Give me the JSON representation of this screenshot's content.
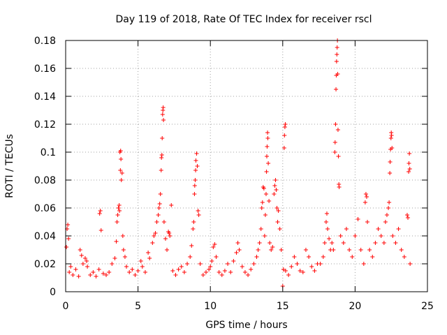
{
  "chart_data": {
    "type": "scatter",
    "title": "Day 119 of 2018, Rate Of TEC Index for receiver rscl",
    "xlabel": "GPS time / hours",
    "ylabel": "ROTI / TECUs",
    "xlim": [
      0,
      25
    ],
    "ylim": [
      0,
      0.18
    ],
    "xticks": [
      0,
      5,
      10,
      15,
      20,
      25
    ],
    "xtick_labels": [
      "0",
      "5",
      "10",
      "15",
      "20",
      "25"
    ],
    "yticks": [
      0,
      0.02,
      0.04,
      0.06,
      0.08,
      0.1,
      0.12,
      0.14,
      0.16,
      0.18
    ],
    "ytick_labels": [
      "0",
      "0.02",
      "0.04",
      "0.06",
      "0.08",
      "0.1",
      "0.12",
      "0.14",
      "0.16",
      "0.18"
    ],
    "grid": true,
    "marker": "+",
    "color": "#ff0000",
    "series": [
      {
        "name": "ROTI",
        "points": [
          [
            0.05,
            0.032
          ],
          [
            0.1,
            0.045
          ],
          [
            0.15,
            0.048
          ],
          [
            0.2,
            0.038
          ],
          [
            0.25,
            0.014
          ],
          [
            0.35,
            0.018
          ],
          [
            0.5,
            0.012
          ],
          [
            0.7,
            0.016
          ],
          [
            0.9,
            0.011
          ],
          [
            1.0,
            0.03
          ],
          [
            1.1,
            0.026
          ],
          [
            1.2,
            0.02
          ],
          [
            1.35,
            0.024
          ],
          [
            1.45,
            0.022
          ],
          [
            1.5,
            0.018
          ],
          [
            1.7,
            0.012
          ],
          [
            1.9,
            0.014
          ],
          [
            2.1,
            0.011
          ],
          [
            2.3,
            0.016
          ],
          [
            2.35,
            0.056
          ],
          [
            2.4,
            0.058
          ],
          [
            2.45,
            0.044
          ],
          [
            2.6,
            0.013
          ],
          [
            2.8,
            0.012
          ],
          [
            3.0,
            0.014
          ],
          [
            3.2,
            0.02
          ],
          [
            3.4,
            0.024
          ],
          [
            3.5,
            0.036
          ],
          [
            3.55,
            0.05
          ],
          [
            3.6,
            0.055
          ],
          [
            3.65,
            0.06
          ],
          [
            3.7,
            0.062
          ],
          [
            3.72,
            0.058
          ],
          [
            3.75,
            0.1
          ],
          [
            3.78,
            0.087
          ],
          [
            3.8,
            0.101
          ],
          [
            3.82,
            0.095
          ],
          [
            3.85,
            0.08
          ],
          [
            3.9,
            0.085
          ],
          [
            3.95,
            0.04
          ],
          [
            4.0,
            0.03
          ],
          [
            4.1,
            0.025
          ],
          [
            4.2,
            0.018
          ],
          [
            4.4,
            0.014
          ],
          [
            4.6,
            0.016
          ],
          [
            4.8,
            0.012
          ],
          [
            5.0,
            0.015
          ],
          [
            5.2,
            0.022
          ],
          [
            5.3,
            0.018
          ],
          [
            5.5,
            0.014
          ],
          [
            5.7,
            0.028
          ],
          [
            5.8,
            0.024
          ],
          [
            6.0,
            0.035
          ],
          [
            6.1,
            0.04
          ],
          [
            6.2,
            0.042
          ],
          [
            6.3,
            0.05
          ],
          [
            6.4,
            0.055
          ],
          [
            6.45,
            0.06
          ],
          [
            6.5,
            0.063
          ],
          [
            6.55,
            0.07
          ],
          [
            6.6,
            0.087
          ],
          [
            6.62,
            0.096
          ],
          [
            6.65,
            0.098
          ],
          [
            6.67,
            0.11
          ],
          [
            6.7,
            0.127
          ],
          [
            6.72,
            0.13
          ],
          [
            6.74,
            0.132
          ],
          [
            6.76,
            0.123
          ],
          [
            6.8,
            0.05
          ],
          [
            6.9,
            0.038
          ],
          [
            7.0,
            0.03
          ],
          [
            7.1,
            0.043
          ],
          [
            7.15,
            0.042
          ],
          [
            7.2,
            0.04
          ],
          [
            7.3,
            0.062
          ],
          [
            7.4,
            0.015
          ],
          [
            7.6,
            0.012
          ],
          [
            7.8,
            0.016
          ],
          [
            8.0,
            0.018
          ],
          [
            8.2,
            0.014
          ],
          [
            8.4,
            0.02
          ],
          [
            8.6,
            0.025
          ],
          [
            8.7,
            0.033
          ],
          [
            8.8,
            0.045
          ],
          [
            8.85,
            0.05
          ],
          [
            8.9,
            0.07
          ],
          [
            8.92,
            0.076
          ],
          [
            8.95,
            0.08
          ],
          [
            8.98,
            0.087
          ],
          [
            9.0,
            0.094
          ],
          [
            9.05,
            0.099
          ],
          [
            9.1,
            0.09
          ],
          [
            9.15,
            0.058
          ],
          [
            9.2,
            0.055
          ],
          [
            9.3,
            0.02
          ],
          [
            9.5,
            0.012
          ],
          [
            9.7,
            0.014
          ],
          [
            9.9,
            0.016
          ],
          [
            10.0,
            0.018
          ],
          [
            10.1,
            0.022
          ],
          [
            10.2,
            0.032
          ],
          [
            10.3,
            0.034
          ],
          [
            10.4,
            0.025
          ],
          [
            10.6,
            0.014
          ],
          [
            10.8,
            0.012
          ],
          [
            11.0,
            0.015
          ],
          [
            11.2,
            0.02
          ],
          [
            11.4,
            0.014
          ],
          [
            11.6,
            0.022
          ],
          [
            11.8,
            0.028
          ],
          [
            11.9,
            0.035
          ],
          [
            12.0,
            0.03
          ],
          [
            12.2,
            0.018
          ],
          [
            12.4,
            0.014
          ],
          [
            12.6,
            0.012
          ],
          [
            12.8,
            0.016
          ],
          [
            13.0,
            0.02
          ],
          [
            13.2,
            0.025
          ],
          [
            13.3,
            0.03
          ],
          [
            13.4,
            0.035
          ],
          [
            13.5,
            0.045
          ],
          [
            13.55,
            0.06
          ],
          [
            13.6,
            0.064
          ],
          [
            13.65,
            0.075
          ],
          [
            13.7,
            0.074
          ],
          [
            13.75,
            0.04
          ],
          [
            13.8,
            0.055
          ],
          [
            13.85,
            0.07
          ],
          [
            13.88,
            0.086
          ],
          [
            13.9,
            0.097
          ],
          [
            13.92,
            0.104
          ],
          [
            13.95,
            0.114
          ],
          [
            13.97,
            0.11
          ],
          [
            14.0,
            0.092
          ],
          [
            14.05,
            0.065
          ],
          [
            14.1,
            0.035
          ],
          [
            14.2,
            0.03
          ],
          [
            14.3,
            0.032
          ],
          [
            14.4,
            0.07
          ],
          [
            14.45,
            0.076
          ],
          [
            14.5,
            0.08
          ],
          [
            14.55,
            0.073
          ],
          [
            14.6,
            0.06
          ],
          [
            14.65,
            0.05
          ],
          [
            14.7,
            0.058
          ],
          [
            14.8,
            0.045
          ],
          [
            14.9,
            0.03
          ],
          [
            15.0,
            0.004
          ],
          [
            15.05,
            0.016
          ],
          [
            15.1,
            0.103
          ],
          [
            15.12,
            0.112
          ],
          [
            15.15,
            0.118
          ],
          [
            15.18,
            0.12
          ],
          [
            15.2,
            0.015
          ],
          [
            15.4,
            0.012
          ],
          [
            15.6,
            0.018
          ],
          [
            15.8,
            0.025
          ],
          [
            16.0,
            0.02
          ],
          [
            16.2,
            0.015
          ],
          [
            16.4,
            0.014
          ],
          [
            16.6,
            0.03
          ],
          [
            16.8,
            0.025
          ],
          [
            17.0,
            0.018
          ],
          [
            17.2,
            0.015
          ],
          [
            17.4,
            0.02
          ],
          [
            17.6,
            0.02
          ],
          [
            17.8,
            0.025
          ],
          [
            17.9,
            0.035
          ],
          [
            18.0,
            0.05
          ],
          [
            18.05,
            0.056
          ],
          [
            18.1,
            0.045
          ],
          [
            18.2,
            0.038
          ],
          [
            18.3,
            0.03
          ],
          [
            18.4,
            0.035
          ],
          [
            18.5,
            0.03
          ],
          [
            18.6,
            0.1
          ],
          [
            18.62,
            0.107
          ],
          [
            18.65,
            0.12
          ],
          [
            18.68,
            0.145
          ],
          [
            18.7,
            0.155
          ],
          [
            18.72,
            0.165
          ],
          [
            18.74,
            0.17
          ],
          [
            18.76,
            0.175
          ],
          [
            18.78,
            0.18
          ],
          [
            18.8,
            0.156
          ],
          [
            18.82,
            0.116
          ],
          [
            18.85,
            0.097
          ],
          [
            18.88,
            0.077
          ],
          [
            18.9,
            0.075
          ],
          [
            19.0,
            0.04
          ],
          [
            19.2,
            0.035
          ],
          [
            19.4,
            0.045
          ],
          [
            19.6,
            0.03
          ],
          [
            19.8,
            0.025
          ],
          [
            20.0,
            0.04
          ],
          [
            20.2,
            0.052
          ],
          [
            20.4,
            0.03
          ],
          [
            20.6,
            0.02
          ],
          [
            20.7,
            0.064
          ],
          [
            20.75,
            0.07
          ],
          [
            20.8,
            0.068
          ],
          [
            20.85,
            0.05
          ],
          [
            21.0,
            0.03
          ],
          [
            21.2,
            0.025
          ],
          [
            21.4,
            0.035
          ],
          [
            21.6,
            0.045
          ],
          [
            21.8,
            0.04
          ],
          [
            22.0,
            0.035
          ],
          [
            22.1,
            0.05
          ],
          [
            22.2,
            0.055
          ],
          [
            22.3,
            0.06
          ],
          [
            22.35,
            0.064
          ],
          [
            22.4,
            0.085
          ],
          [
            22.42,
            0.093
          ],
          [
            22.45,
            0.102
          ],
          [
            22.48,
            0.11
          ],
          [
            22.5,
            0.114
          ],
          [
            22.52,
            0.112
          ],
          [
            22.55,
            0.103
          ],
          [
            22.6,
            0.04
          ],
          [
            22.8,
            0.035
          ],
          [
            23.0,
            0.045
          ],
          [
            23.2,
            0.03
          ],
          [
            23.4,
            0.025
          ],
          [
            23.6,
            0.055
          ],
          [
            23.65,
            0.053
          ],
          [
            23.7,
            0.086
          ],
          [
            23.72,
            0.092
          ],
          [
            23.75,
            0.099
          ],
          [
            23.78,
            0.088
          ],
          [
            23.8,
            0.02
          ]
        ]
      }
    ]
  }
}
